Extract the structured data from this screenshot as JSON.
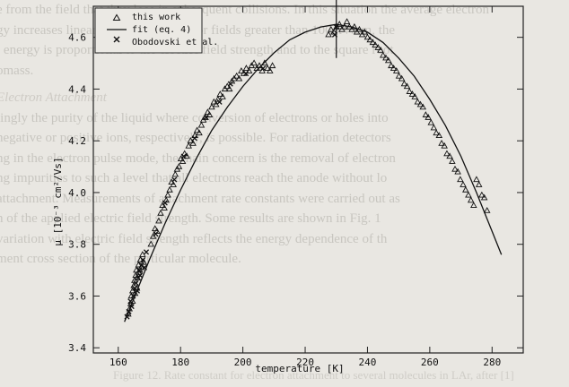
{
  "bleed_through": {
    "lines": [
      "e from the field that they lose in subsequent collisions. In this situation the average electron",
      "gy increases linearly with the field. For fields greater than 100 kV/cm, the",
      "l energy is proportional to the electric field strength and to the square root",
      "omass.",
      "Electron Attachment",
      "lingly the purity of the liquid where conversion of electrons or holes into",
      "negative or positive ions, respectively, is possible. For radiation detectors",
      "ng in the electron pulse mode, the main concern is the removal of electron",
      "ng impurities to such a level that all electrons reach the anode without lo",
      "attachment. Measurements of attachment rate constants were carried out as",
      "n of the applied electric field strength. Some results are shown in Fig. 1",
      "variation with electric field strength reflects the energy dependence of th",
      "ment cross section of the particular molecule."
    ],
    "caption": "Figure 12. Rate constant for electron attachment to several molecules in LAr, after [1]"
  },
  "chart_data": {
    "type": "scatter",
    "xlabel": "temperature [K]",
    "ylabel": "μ [10⁻³ cm²/Vs]",
    "xlim": [
      152,
      290
    ],
    "ylim": [
      3.38,
      4.72
    ],
    "x_ticks": [
      160,
      180,
      200,
      220,
      240,
      260,
      280
    ],
    "y_ticks": [
      3.4,
      3.6,
      3.8,
      4.0,
      4.2,
      4.4,
      4.6
    ],
    "legend_position": "top-left",
    "legend": [
      {
        "label": "this work",
        "marker": "triangle"
      },
      {
        "label": "fit (eq. 4)",
        "marker": "line"
      },
      {
        "label": "Obodovski et al.",
        "marker": "cross"
      }
    ],
    "series": [
      {
        "name": "this work",
        "marker": "triangle",
        "points": [
          [
            163.2,
            3.53
          ],
          [
            163.6,
            3.55
          ],
          [
            164.0,
            3.57
          ],
          [
            164.2,
            3.6
          ],
          [
            164.6,
            3.62
          ],
          [
            165.0,
            3.64
          ],
          [
            165.2,
            3.66
          ],
          [
            165.6,
            3.68
          ],
          [
            165.8,
            3.7
          ],
          [
            166.2,
            3.67
          ],
          [
            166.5,
            3.72
          ],
          [
            166.9,
            3.7
          ],
          [
            167.1,
            3.74
          ],
          [
            167.4,
            3.71
          ],
          [
            167.8,
            3.76
          ],
          [
            168.2,
            3.73
          ],
          [
            164.6,
            3.58
          ],
          [
            165.4,
            3.61
          ],
          [
            166.0,
            3.63
          ],
          [
            166.6,
            3.69
          ],
          [
            170.5,
            3.8
          ],
          [
            171.2,
            3.83
          ],
          [
            171.8,
            3.86
          ],
          [
            172.4,
            3.85
          ],
          [
            173.0,
            3.89
          ],
          [
            173.6,
            3.92
          ],
          [
            174.2,
            3.95
          ],
          [
            174.8,
            3.94
          ],
          [
            175.4,
            3.97
          ],
          [
            175.9,
            3.99
          ],
          [
            176.5,
            4.01
          ],
          [
            177.1,
            4.04
          ],
          [
            177.7,
            4.03
          ],
          [
            178.3,
            4.07
          ],
          [
            178.9,
            4.09
          ],
          [
            179.5,
            4.1
          ],
          [
            180.1,
            4.13
          ],
          [
            180.7,
            4.12
          ],
          [
            181.3,
            4.15
          ],
          [
            182.0,
            4.14
          ],
          [
            182.6,
            4.18
          ],
          [
            183.2,
            4.2
          ],
          [
            184.0,
            4.19
          ],
          [
            184.6,
            4.22
          ],
          [
            185.3,
            4.24
          ],
          [
            186.0,
            4.23
          ],
          [
            186.7,
            4.26
          ],
          [
            187.3,
            4.28
          ],
          [
            188.0,
            4.29
          ],
          [
            188.7,
            4.31
          ],
          [
            189.3,
            4.3
          ],
          [
            190.0,
            4.33
          ],
          [
            190.7,
            4.35
          ],
          [
            191.4,
            4.34
          ],
          [
            192.0,
            4.36
          ],
          [
            192.7,
            4.38
          ],
          [
            193.5,
            4.37
          ],
          [
            194.2,
            4.4
          ],
          [
            195.0,
            4.41
          ],
          [
            195.7,
            4.4
          ],
          [
            196.5,
            4.43
          ],
          [
            197.2,
            4.44
          ],
          [
            198.0,
            4.45
          ],
          [
            198.8,
            4.44
          ],
          [
            199.5,
            4.47
          ],
          [
            200.3,
            4.46
          ],
          [
            201.1,
            4.48
          ],
          [
            202.0,
            4.47
          ],
          [
            202.8,
            4.49
          ],
          [
            203.6,
            4.5
          ],
          [
            204.5,
            4.48
          ],
          [
            205.3,
            4.49
          ],
          [
            206.2,
            4.47
          ],
          [
            207.0,
            4.5
          ],
          [
            207.9,
            4.48
          ],
          [
            208.7,
            4.47
          ],
          [
            209.5,
            4.49
          ],
          [
            227.5,
            4.61
          ],
          [
            228.3,
            4.63
          ],
          [
            229.2,
            4.62
          ],
          [
            230.1,
            4.64
          ],
          [
            231.0,
            4.65
          ],
          [
            231.8,
            4.63
          ],
          [
            232.6,
            4.64
          ],
          [
            233.4,
            4.66
          ],
          [
            234.2,
            4.64
          ],
          [
            235.0,
            4.63
          ],
          [
            235.8,
            4.64
          ],
          [
            236.6,
            4.62
          ],
          [
            237.4,
            4.63
          ],
          [
            238.3,
            4.61
          ],
          [
            239.1,
            4.62
          ],
          [
            240.0,
            4.6
          ],
          [
            240.8,
            4.59
          ],
          [
            241.7,
            4.58
          ],
          [
            242.5,
            4.57
          ],
          [
            243.4,
            4.56
          ],
          [
            244.2,
            4.55
          ],
          [
            245.0,
            4.53
          ],
          [
            245.9,
            4.52
          ],
          [
            246.7,
            4.51
          ],
          [
            247.6,
            4.49
          ],
          [
            248.4,
            4.48
          ],
          [
            249.3,
            4.47
          ],
          [
            250.1,
            4.45
          ],
          [
            251.0,
            4.44
          ],
          [
            251.8,
            4.42
          ],
          [
            252.7,
            4.41
          ],
          [
            253.5,
            4.39
          ],
          [
            254.4,
            4.38
          ],
          [
            255.2,
            4.37
          ],
          [
            256.1,
            4.35
          ],
          [
            257.0,
            4.34
          ],
          [
            257.8,
            4.33
          ],
          [
            258.7,
            4.3
          ],
          [
            259.5,
            4.29
          ],
          [
            260.4,
            4.27
          ],
          [
            261.3,
            4.25
          ],
          [
            262.1,
            4.23
          ],
          [
            263.0,
            4.22
          ],
          [
            263.8,
            4.19
          ],
          [
            264.7,
            4.18
          ],
          [
            265.5,
            4.15
          ],
          [
            266.4,
            4.14
          ],
          [
            267.2,
            4.12
          ],
          [
            268.1,
            4.09
          ],
          [
            269.0,
            4.08
          ],
          [
            269.8,
            4.05
          ],
          [
            270.7,
            4.03
          ],
          [
            271.5,
            4.01
          ],
          [
            272.4,
            3.99
          ],
          [
            273.2,
            3.97
          ],
          [
            274.1,
            3.95
          ],
          [
            275.0,
            4.05
          ],
          [
            275.8,
            4.03
          ],
          [
            276.7,
            3.99
          ],
          [
            277.5,
            3.98
          ],
          [
            278.4,
            3.93
          ]
        ]
      },
      {
        "name": "Obodovski et al.",
        "marker": "cross",
        "points": [
          [
            162.8,
            3.52
          ],
          [
            163.4,
            3.54
          ],
          [
            163.9,
            3.58
          ],
          [
            164.3,
            3.56
          ],
          [
            164.8,
            3.6
          ],
          [
            165.3,
            3.63
          ],
          [
            165.7,
            3.65
          ],
          [
            166.1,
            3.62
          ],
          [
            166.4,
            3.67
          ],
          [
            166.8,
            3.7
          ],
          [
            167.0,
            3.68
          ],
          [
            167.5,
            3.72
          ],
          [
            167.9,
            3.74
          ],
          [
            168.4,
            3.71
          ],
          [
            169.0,
            3.77
          ],
          [
            172.0,
            3.84
          ],
          [
            175.0,
            3.96
          ],
          [
            178.0,
            4.05
          ],
          [
            181.0,
            4.14
          ],
          [
            184.5,
            4.21
          ],
          [
            188.2,
            4.29
          ],
          [
            192.5,
            4.35
          ],
          [
            196.0,
            4.42
          ],
          [
            201.0,
            4.46
          ],
          [
            206.5,
            4.48
          ],
          [
            229.5,
            4.61
          ],
          [
            230.0,
            4.64
          ]
        ]
      },
      {
        "name": "fit (eq. 4)",
        "marker": "line",
        "x": [
          162,
          165,
          170,
          175,
          180,
          185,
          190,
          195,
          200,
          205,
          210,
          215,
          220,
          225,
          230,
          235,
          240,
          245,
          250,
          255,
          260,
          265,
          270,
          275,
          280,
          283
        ],
        "y": [
          3.5,
          3.59,
          3.74,
          3.88,
          4.01,
          4.13,
          4.24,
          4.33,
          4.41,
          4.48,
          4.54,
          4.59,
          4.62,
          4.64,
          4.65,
          4.64,
          4.62,
          4.58,
          4.52,
          4.45,
          4.36,
          4.26,
          4.14,
          4.0,
          3.85,
          3.76
        ]
      }
    ],
    "annotations": [
      {
        "type": "error_bar",
        "x": 230,
        "y_range": [
          4.52,
          4.77
        ]
      }
    ]
  }
}
